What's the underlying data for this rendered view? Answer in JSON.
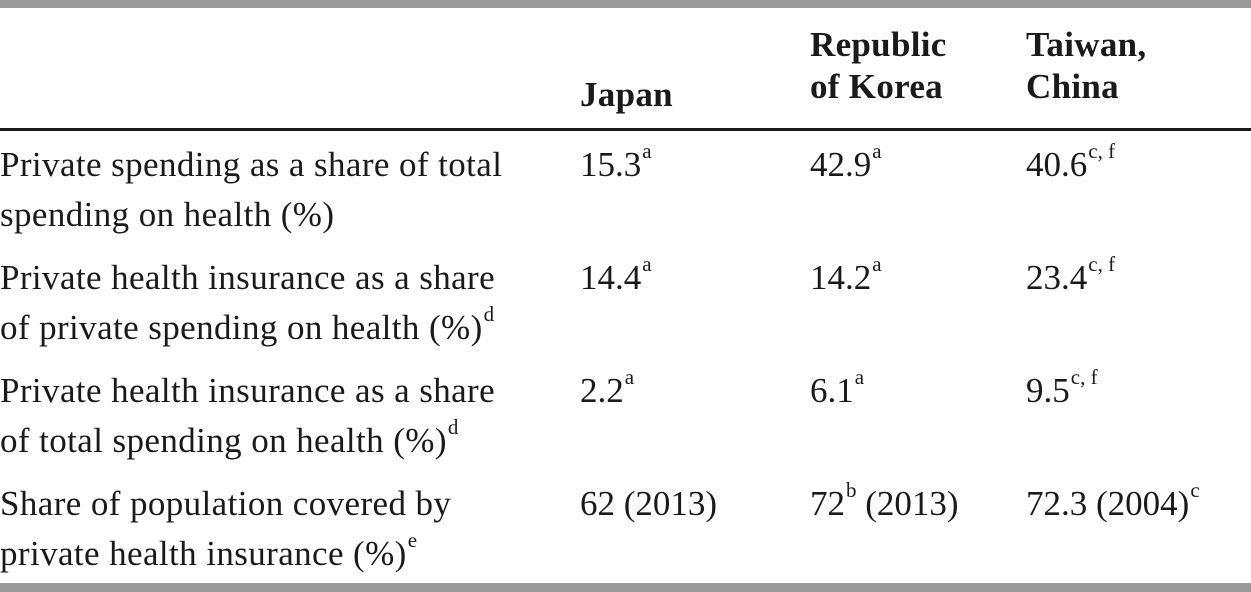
{
  "header": {
    "columns": [
      {
        "lines": [
          "Japan"
        ]
      },
      {
        "lines": [
          "Republic",
          "of Korea"
        ]
      },
      {
        "lines": [
          "Taiwan,",
          "China"
        ]
      }
    ]
  },
  "rows": [
    {
      "label": [
        "Private spending as a share of total",
        "spending on health (%)"
      ],
      "label_sup": "",
      "cells": [
        {
          "value": "15.3",
          "sup": "a",
          "after": ""
        },
        {
          "value": "42.9",
          "sup": "a",
          "after": ""
        },
        {
          "value": "40.6",
          "sup": "c, f",
          "after": ""
        }
      ]
    },
    {
      "label": [
        "Private health insurance as a share",
        "of private spending on health (%)"
      ],
      "label_sup": "d",
      "cells": [
        {
          "value": "14.4",
          "sup": "a",
          "after": ""
        },
        {
          "value": "14.2",
          "sup": "a",
          "after": ""
        },
        {
          "value": "23.4",
          "sup": "c, f",
          "after": ""
        }
      ]
    },
    {
      "label": [
        "Private health insurance as a share",
        "of total spending on health (%)"
      ],
      "label_sup": "d",
      "cells": [
        {
          "value": "2.2",
          "sup": "a",
          "after": ""
        },
        {
          "value": "6.1",
          "sup": "a",
          "after": ""
        },
        {
          "value": "9.5",
          "sup": "c, f",
          "after": ""
        }
      ]
    },
    {
      "label": [
        "Share of population covered by",
        "private health insurance (%)"
      ],
      "label_sup": "e",
      "cells": [
        {
          "value": "62 (2013)",
          "sup": "",
          "after": ""
        },
        {
          "value": "72",
          "sup": "b",
          "after": " (2013)"
        },
        {
          "value": "72.3 (2004)",
          "sup": "c",
          "after": ""
        }
      ]
    }
  ]
}
